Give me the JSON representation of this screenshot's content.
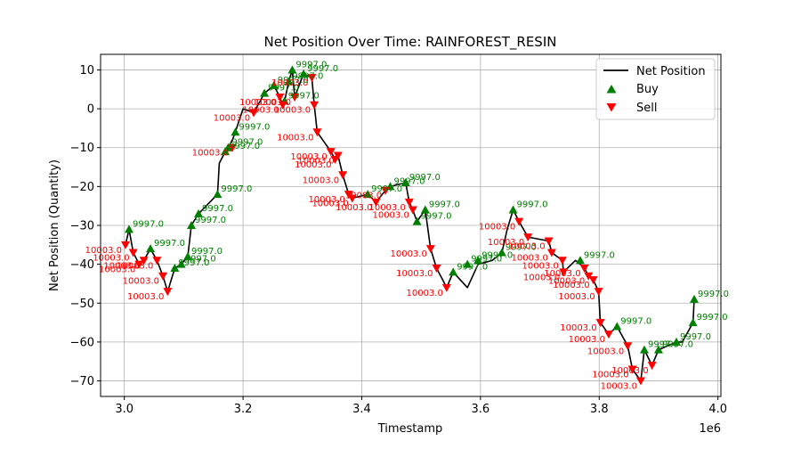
{
  "chart_data": {
    "type": "line",
    "title": "Net Position Over Time: RAINFOREST_RESIN",
    "xlabel": "Timestamp",
    "ylabel": "Net Position (Quantity)",
    "x_offset_label": "1e6",
    "xlim": [
      2.96,
      4.005
    ],
    "ylim": [
      -74,
      14
    ],
    "x_ticks": [
      3.0,
      3.2,
      3.4,
      3.6,
      3.8,
      4.0
    ],
    "x_tick_labels": [
      "3.0",
      "3.2",
      "3.4",
      "3.6",
      "3.8",
      "4.0"
    ],
    "y_ticks": [
      10,
      0,
      -10,
      -20,
      -30,
      -40,
      -50,
      -60,
      -70
    ],
    "y_tick_labels": [
      "10",
      "0",
      "−10",
      "−20",
      "−30",
      "−40",
      "−50",
      "−60",
      "−70"
    ],
    "grid": true,
    "legend_position": "top-right",
    "colors": {
      "line": "#000000",
      "buy": "#008000",
      "sell": "#ff0000",
      "grid": "#b0b0b0"
    },
    "series": [
      {
        "name": "Net Position",
        "kind": "line",
        "x": [
          3.002,
          3.008,
          3.015,
          3.025,
          3.033,
          3.044,
          3.055,
          3.065,
          3.073,
          3.085,
          3.096,
          3.107,
          3.113,
          3.125,
          3.157,
          3.16,
          3.17,
          3.175,
          3.182,
          3.187,
          3.2,
          3.218,
          3.236,
          3.252,
          3.262,
          3.267,
          3.27,
          3.277,
          3.283,
          3.287,
          3.302,
          3.316,
          3.32,
          3.325,
          3.348,
          3.355,
          3.36,
          3.368,
          3.378,
          3.384,
          3.41,
          3.424,
          3.44,
          3.448,
          3.474,
          3.48,
          3.486,
          3.493,
          3.507,
          3.516,
          3.526,
          3.543,
          3.554,
          3.578,
          3.596,
          3.62,
          3.636,
          3.645,
          3.655,
          3.665,
          3.68,
          3.715,
          3.72,
          3.738,
          3.74,
          3.76,
          3.768,
          3.775,
          3.782,
          3.79,
          3.799,
          3.802,
          3.816,
          3.83,
          3.848,
          3.856,
          3.87,
          3.876,
          3.889,
          3.9,
          3.93,
          3.94,
          3.958,
          3.96
        ],
        "y": [
          -35,
          -31,
          -37,
          -40,
          -39,
          -36,
          -39,
          -43,
          -47,
          -41,
          -40,
          -38,
          -30,
          -27,
          -22,
          -14,
          -11,
          -10,
          -8,
          -6,
          0,
          -1,
          4,
          6,
          3,
          1,
          2,
          7,
          10,
          3,
          9,
          8,
          1,
          -6,
          -11,
          -13,
          -12,
          -17,
          -22,
          -23,
          -22,
          -24,
          -21,
          -20,
          -19,
          -24,
          -26,
          -29,
          -26,
          -36,
          -41,
          -46,
          -42,
          -46,
          -40,
          -39,
          -37,
          -31,
          -26,
          -29,
          -33,
          -34,
          -37,
          -39,
          -42,
          -39,
          -40,
          -41,
          -43,
          -44,
          -47,
          -55,
          -58,
          -56,
          -61,
          -67,
          -70,
          -62,
          -66,
          -62,
          -60,
          -60,
          -55,
          -49
        ]
      },
      {
        "name": "Buy",
        "kind": "marker-up",
        "x": [
          3.008,
          3.044,
          3.085,
          3.096,
          3.107,
          3.113,
          3.125,
          3.157,
          3.17,
          3.175,
          3.187,
          3.236,
          3.252,
          3.27,
          3.277,
          3.283,
          3.302,
          3.41,
          3.448,
          3.474,
          3.493,
          3.507,
          3.554,
          3.578,
          3.596,
          3.636,
          3.655,
          3.768,
          3.83,
          3.876,
          3.9,
          3.93,
          3.958,
          3.96
        ],
        "y": [
          -31,
          -36,
          -41,
          -40,
          -38,
          -30,
          -27,
          -22,
          -11,
          -10,
          -6,
          4,
          6,
          2,
          7,
          10,
          9,
          -22,
          -20,
          -19,
          -29,
          -26,
          -42,
          -40,
          -39,
          -37,
          -26,
          -39,
          -56,
          -62,
          -62,
          -60,
          -55,
          -49
        ],
        "labels": [
          "9997.0",
          "9997.0",
          "9997.0",
          "9997.0",
          "9997.0",
          "9997.0",
          "9997.0",
          "9997.0",
          "9997.0",
          "9997.0",
          "9997.0",
          "9997.0",
          "9997.0",
          "9997.0",
          "9997.0",
          "9997.0",
          "9997.0",
          "9997.0",
          "9997.0",
          "9997.0",
          "9997.0",
          "9997.0",
          "9997.0",
          "9997.0",
          "9997.0",
          "9997.0",
          "9997.0",
          "9997.0",
          "9997.0",
          "9997.0",
          "9997.0",
          "9997.0",
          "9997.0",
          "9997.0"
        ]
      },
      {
        "name": "Sell",
        "kind": "marker-down",
        "x": [
          3.002,
          3.015,
          3.025,
          3.033,
          3.055,
          3.065,
          3.073,
          3.182,
          3.218,
          3.262,
          3.267,
          3.287,
          3.316,
          3.32,
          3.325,
          3.348,
          3.355,
          3.36,
          3.368,
          3.378,
          3.384,
          3.424,
          3.44,
          3.48,
          3.486,
          3.516,
          3.526,
          3.543,
          3.665,
          3.68,
          3.715,
          3.72,
          3.738,
          3.74,
          3.775,
          3.782,
          3.79,
          3.799,
          3.802,
          3.816,
          3.848,
          3.856,
          3.87,
          3.889
        ],
        "y": [
          -35,
          -37,
          -40,
          -39,
          -39,
          -43,
          -47,
          -10,
          -1,
          3,
          1,
          3,
          8,
          1,
          -6,
          -11,
          -13,
          -12,
          -17,
          -22,
          -23,
          -24,
          -21,
          -24,
          -26,
          -36,
          -41,
          -46,
          -29,
          -33,
          -34,
          -37,
          -39,
          -42,
          -41,
          -43,
          -44,
          -47,
          -55,
          -58,
          -61,
          -67,
          -70,
          -66
        ],
        "labels": [
          "10003.0",
          "10003.0",
          "10003.0",
          "10003.0",
          "10003.0",
          "10003.0",
          "10003.0",
          "10003.0",
          "10003.0",
          "10003.0",
          "10003.0",
          "10003.0",
          "10003.0",
          "10003.0",
          "10003.0",
          "10003.0",
          "10003.0",
          "10003.0",
          "10003.0",
          "10003.0",
          "10003.0",
          "10003.0",
          "10003.0",
          "10003.0",
          "10003.0",
          "10003.0",
          "10003.0",
          "10003.0",
          "10003.0",
          "10003.0",
          "10003.0",
          "10003.0",
          "10003.0",
          "10003.0",
          "10003.0",
          "10003.0",
          "10003.0",
          "10003.0",
          "10003.0",
          "10003.0",
          "10003.0",
          "10003.0",
          "10003.0",
          "10003.0"
        ]
      }
    ]
  }
}
